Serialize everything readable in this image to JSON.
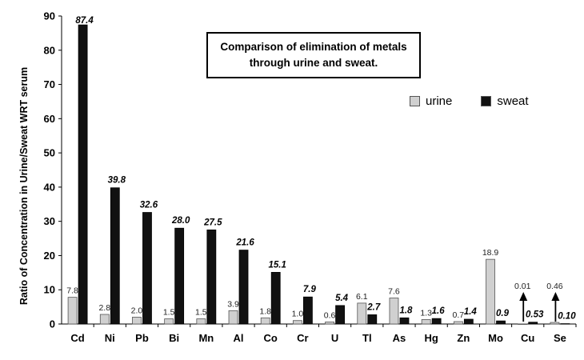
{
  "chart_data": {
    "type": "bar",
    "title": "Comparison of elimination of metals through urine and sweat.",
    "title_lines": [
      "Comparison of elimination of metals",
      "through urine and sweat."
    ],
    "ylabel": "Ratio of Concentration in Urine/Sweat WRT serum",
    "xlabel": "",
    "ylim": [
      0,
      90
    ],
    "yticks": [
      "0",
      "10",
      "20",
      "30",
      "40",
      "50",
      "60",
      "70",
      "80",
      "90"
    ],
    "grid": false,
    "legend_position": "top-right",
    "categories": [
      "Cd",
      "Ni",
      "Pb",
      "Bi",
      "Mn",
      "Al",
      "Co",
      "Cr",
      "U",
      "Tl",
      "As",
      "Hg",
      "Zn",
      "Mo",
      "Cu",
      "Se"
    ],
    "series": [
      {
        "name": "urine",
        "color": "#d0d0d0",
        "values": [
          7.8,
          2.8,
          2.0,
          1.5,
          1.5,
          3.9,
          1.8,
          1.0,
          0.6,
          6.1,
          7.6,
          1.3,
          0.7,
          18.9,
          0.01,
          0.46
        ],
        "labels": [
          "7.8",
          "2.8",
          "2.0",
          "1.5",
          "1.5",
          "3.9",
          "1.8",
          "1.0",
          "0.6",
          "6.1",
          "7.6",
          "1.3",
          "0.7",
          "18.9",
          "0.01",
          "0.46"
        ]
      },
      {
        "name": "sweat",
        "color": "#111111",
        "values": [
          87.4,
          39.8,
          32.6,
          28.0,
          27.5,
          21.6,
          15.1,
          7.9,
          5.4,
          2.7,
          1.8,
          1.6,
          1.4,
          0.9,
          0.53,
          0.1
        ],
        "labels": [
          "87.4",
          "39.8",
          "32.6",
          "28.0",
          "27.5",
          "21.6",
          "15.1",
          "7.9",
          "5.4",
          "2.7",
          "1.8",
          "1.6",
          "1.4",
          "0.9",
          "0.53",
          "0.10"
        ]
      }
    ],
    "annotations": [
      {
        "category": "Cu",
        "type": "up-arrow",
        "series": "urine"
      },
      {
        "category": "Se",
        "type": "up-arrow",
        "series": "urine"
      }
    ]
  }
}
